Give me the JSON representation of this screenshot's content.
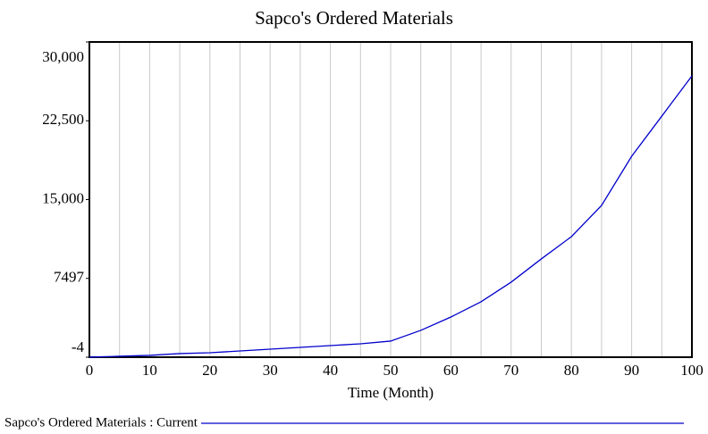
{
  "chart_data": {
    "type": "line",
    "title": "Sapco's Ordered Materials",
    "x_label": "Time (Month)",
    "x": [
      0,
      5,
      10,
      15,
      20,
      25,
      30,
      35,
      40,
      45,
      50,
      55,
      60,
      65,
      70,
      75,
      80,
      85,
      90,
      95,
      100
    ],
    "series": [
      {
        "name": "Sapco's Ordered Materials : Current",
        "color": "#0000cc",
        "values": [
          0,
          85,
          170,
          340,
          420,
          590,
          760,
          930,
          1100,
          1270,
          1530,
          2550,
          3820,
          5270,
          7140,
          9350,
          11470,
          14440,
          19120,
          22940,
          26770
        ]
      }
    ],
    "xlim": [
      0,
      100
    ],
    "xticks": [
      0,
      10,
      20,
      30,
      40,
      50,
      60,
      70,
      80,
      90,
      100
    ],
    "ylim": [
      -4,
      30000
    ],
    "yticks": [
      -4,
      7497,
      {
        "value": 15000,
        "label": "15,000"
      },
      {
        "value": 22500,
        "label": "22,500"
      },
      {
        "value": 30000,
        "label": "30,000"
      }
    ],
    "grid": true
  }
}
